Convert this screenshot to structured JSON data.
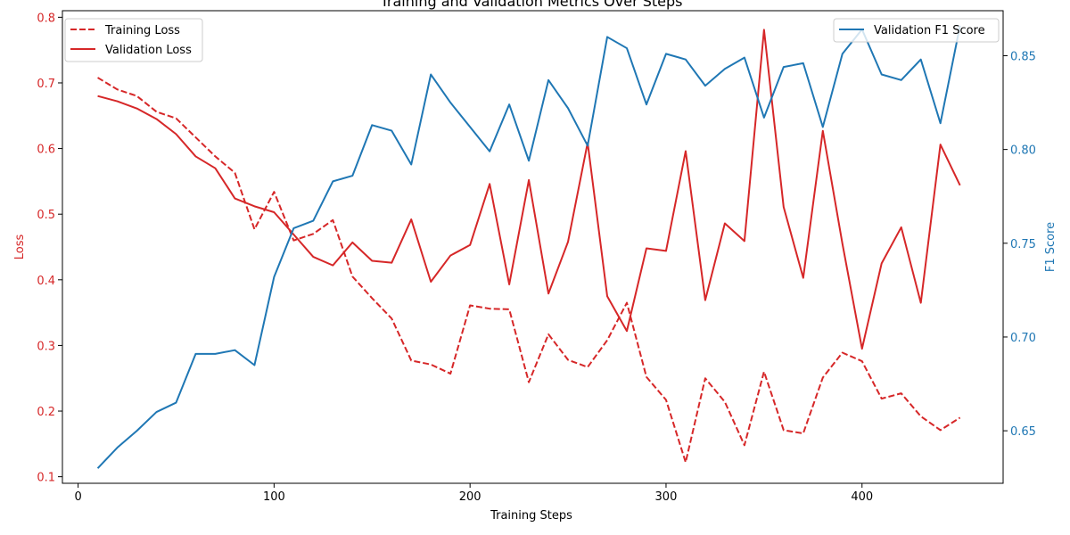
{
  "colors": {
    "loss": "#d62728",
    "f1": "#1f77b4",
    "axis": "#000000",
    "legend_border": "#cccccc"
  },
  "chart_data": {
    "type": "line",
    "title": "Training and Validation Metrics Over Steps",
    "xlabel": "Training Steps",
    "ylabel_left": "Loss",
    "ylabel_right": "F1 Score",
    "xlim": [
      -8,
      472
    ],
    "ylim_left": [
      0.09,
      0.81
    ],
    "ylim_right": [
      0.622,
      0.874
    ],
    "x_ticks": [
      0,
      100,
      200,
      300,
      400
    ],
    "x_tick_labels": [
      "0",
      "100",
      "200",
      "300",
      "400"
    ],
    "y_ticks_left": [
      0.1,
      0.2,
      0.3,
      0.4,
      0.5,
      0.6,
      0.7,
      0.8
    ],
    "y_tick_labels_left": [
      "0.1",
      "0.2",
      "0.3",
      "0.4",
      "0.5",
      "0.6",
      "0.7",
      "0.8"
    ],
    "y_ticks_right": [
      0.65,
      0.7,
      0.75,
      0.8,
      0.85
    ],
    "y_tick_labels_right": [
      "0.65",
      "0.70",
      "0.75",
      "0.80",
      "0.85"
    ],
    "grid": false,
    "x": [
      10,
      20,
      30,
      40,
      50,
      60,
      70,
      80,
      90,
      100,
      110,
      120,
      130,
      140,
      150,
      160,
      170,
      180,
      190,
      200,
      210,
      220,
      230,
      240,
      250,
      260,
      270,
      280,
      290,
      300,
      310,
      320,
      330,
      340,
      350,
      360,
      370,
      380,
      390,
      400,
      410,
      420,
      430,
      440,
      450
    ],
    "series": [
      {
        "name": "Training Loss",
        "axis": "left",
        "style": "dashed",
        "values": [
          0.708,
          0.69,
          0.68,
          0.656,
          0.646,
          0.617,
          0.588,
          0.563,
          0.477,
          0.534,
          0.46,
          0.47,
          0.491,
          0.405,
          0.372,
          0.341,
          0.277,
          0.271,
          0.257,
          0.361,
          0.356,
          0.355,
          0.244,
          0.317,
          0.278,
          0.267,
          0.308,
          0.365,
          0.252,
          0.217,
          0.122,
          0.25,
          0.214,
          0.148,
          0.26,
          0.171,
          0.166,
          0.251,
          0.289,
          0.276,
          0.219,
          0.227,
          0.192,
          0.171,
          0.19
        ]
      },
      {
        "name": "Validation Loss",
        "axis": "left",
        "style": "solid",
        "values": [
          0.68,
          0.672,
          0.661,
          0.645,
          0.622,
          0.588,
          0.57,
          0.524,
          0.512,
          0.503,
          0.469,
          0.435,
          0.422,
          0.457,
          0.429,
          0.426,
          0.492,
          0.397,
          0.437,
          0.453,
          0.546,
          0.393,
          0.552,
          0.379,
          0.458,
          0.609,
          0.375,
          0.322,
          0.448,
          0.444,
          0.596,
          0.369,
          0.486,
          0.459,
          0.781,
          0.511,
          0.403,
          0.627,
          0.455,
          0.295,
          0.425,
          0.48,
          0.365,
          0.606,
          0.544
        ]
      },
      {
        "name": "Validation F1 Score",
        "axis": "right",
        "style": "solid",
        "values": [
          0.63,
          0.641,
          0.65,
          0.66,
          0.665,
          0.691,
          0.691,
          0.693,
          0.685,
          0.732,
          0.758,
          0.762,
          0.783,
          0.786,
          0.813,
          0.81,
          0.792,
          0.84,
          0.825,
          0.812,
          0.799,
          0.824,
          0.794,
          0.837,
          0.822,
          0.802,
          0.86,
          0.854,
          0.824,
          0.851,
          0.848,
          0.834,
          0.843,
          0.849,
          0.817,
          0.844,
          0.846,
          0.812,
          0.851,
          0.864,
          0.84,
          0.837,
          0.848,
          0.814,
          0.866
        ]
      }
    ],
    "legends": [
      {
        "placement": "upper-left",
        "entries": [
          "Training Loss",
          "Validation Loss"
        ]
      },
      {
        "placement": "upper-right",
        "entries": [
          "Validation F1 Score"
        ]
      }
    ]
  }
}
